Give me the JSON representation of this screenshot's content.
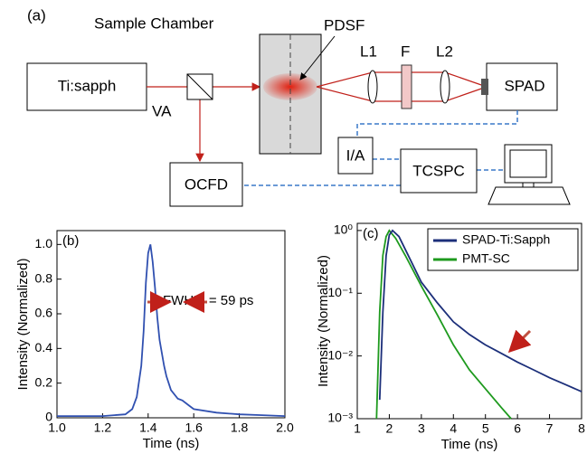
{
  "diagram": {
    "panel_label": "(a)",
    "chamber_label": "Sample Chamber",
    "pdsf": "PDSF",
    "laser": "Ti:sapph",
    "attenuator": "VA",
    "lens1": "L1",
    "filter": "F",
    "lens2": "L2",
    "detector": "SPAD",
    "amplifier": "I/A",
    "counter": "TCSPC",
    "discriminator": "OCFD"
  },
  "chart_data": [
    {
      "type": "line",
      "panel_label": "(b)",
      "xlabel": "Time (ns)",
      "ylabel": "Intensity (Normalized)",
      "annotation": "FWHM = 59 ps",
      "color": "#3050b0",
      "x": [
        1.0,
        1.1,
        1.2,
        1.3,
        1.33,
        1.35,
        1.37,
        1.38,
        1.39,
        1.4,
        1.41,
        1.42,
        1.43,
        1.44,
        1.45,
        1.47,
        1.48,
        1.5,
        1.53,
        1.55,
        1.58,
        1.6,
        1.7,
        1.8,
        1.9,
        2.0
      ],
      "values": [
        0.01,
        0.01,
        0.01,
        0.02,
        0.05,
        0.12,
        0.3,
        0.5,
        0.78,
        0.95,
        1.0,
        0.9,
        0.75,
        0.58,
        0.45,
        0.3,
        0.24,
        0.16,
        0.11,
        0.1,
        0.07,
        0.05,
        0.03,
        0.02,
        0.015,
        0.01
      ],
      "xlim": [
        1.0,
        2.0
      ],
      "ylim": [
        0,
        1.08
      ],
      "xticks": [
        {
          "value": 1.0,
          "label": "1.0"
        },
        1.2,
        1.4,
        1.6,
        1.8,
        {
          "value": 2.0,
          "label": "2.0"
        }
      ],
      "yticks": [
        0,
        0.2,
        0.4,
        0.6,
        0.8,
        {
          "value": 1.0,
          "label": "1.0"
        }
      ]
    },
    {
      "type": "line",
      "panel_label": "(c)",
      "xlabel": "Time (ns)",
      "ylabel": "Intensity (Normalized)",
      "log_y": true,
      "legend": "upper right",
      "series": [
        {
          "name": "SPAD-Ti:Sapph",
          "color": "#1c2f7a",
          "x": [
            1.7,
            1.8,
            1.9,
            2.0,
            2.1,
            2.3,
            2.5,
            3.0,
            3.5,
            4.0,
            4.5,
            5.0,
            5.5,
            6.0,
            6.5,
            7.0,
            7.5,
            8.0
          ],
          "values": [
            0.002,
            0.05,
            0.4,
            0.85,
            1.0,
            0.8,
            0.5,
            0.15,
            0.07,
            0.035,
            0.022,
            0.015,
            0.011,
            0.008,
            0.006,
            0.0045,
            0.0035,
            0.0027
          ]
        },
        {
          "name": "PMT-SC",
          "color": "#1e9a1e",
          "x": [
            1.6,
            1.7,
            1.8,
            1.9,
            2.0,
            2.2,
            2.5,
            3.0,
            3.5,
            4.0,
            4.5,
            5.0,
            5.5,
            5.8
          ],
          "values": [
            0.001,
            0.05,
            0.4,
            0.8,
            1.0,
            0.75,
            0.4,
            0.13,
            0.045,
            0.015,
            0.006,
            0.003,
            0.0015,
            0.001
          ]
        }
      ],
      "xlim": [
        1,
        8
      ],
      "ylim": [
        0.001,
        1.3
      ],
      "xticks": [
        1,
        2,
        3,
        4,
        5,
        6,
        7,
        8
      ],
      "yticks": [
        {
          "value": 0.001,
          "label": "10⁻³"
        },
        {
          "value": 0.01,
          "label": "10⁻²"
        },
        {
          "value": 0.1,
          "label": "10⁻¹"
        },
        {
          "value": 1,
          "label": "10⁰"
        }
      ]
    }
  ]
}
